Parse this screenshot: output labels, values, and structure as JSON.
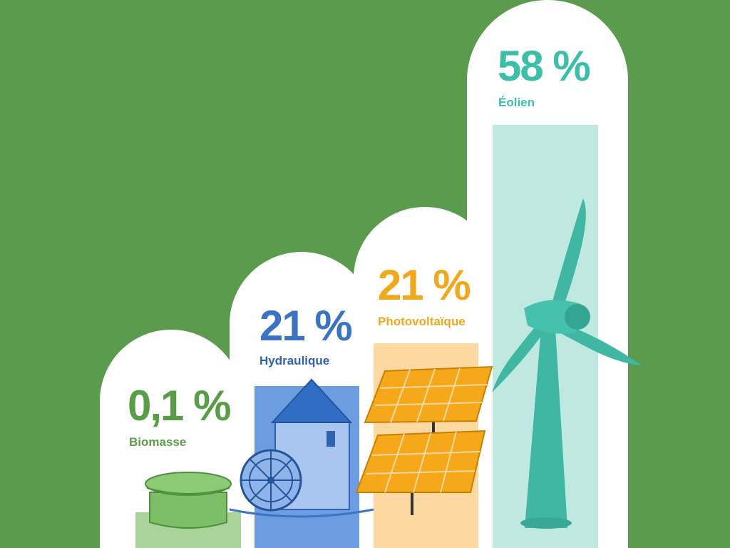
{
  "chart_data": {
    "type": "bar",
    "categories": [
      "Biomasse",
      "Hydraulique",
      "Photovoltaïque",
      "Éolien"
    ],
    "values": [
      0.1,
      21,
      21,
      58
    ],
    "value_labels": [
      "0,1 %",
      "21 %",
      "21 %",
      "58 %"
    ],
    "title": "",
    "xlabel": "",
    "ylabel": "",
    "colors": [
      "#5a9d48",
      "#3c74c4",
      "#f2a81d",
      "#3bbfa8"
    ],
    "icons": [
      "biogas-digester-icon",
      "water-mill-icon",
      "solar-panel-icon",
      "wind-turbine-icon"
    ],
    "grid": false,
    "legend": "none"
  },
  "background_color": "#5b9b4e"
}
